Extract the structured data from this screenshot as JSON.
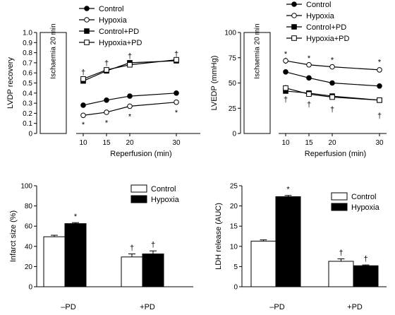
{
  "chart_data": [
    {
      "type": "line",
      "ylabel": "LVDP recovery",
      "xlabel": "Reperfusion (min)",
      "ylim": [
        0,
        1.0
      ],
      "yticks": [
        "0",
        "0.1",
        "0.2",
        "0.3",
        "0.4",
        "0.5",
        "0.6",
        "0.7",
        "0.8",
        "0.9",
        "1.0"
      ],
      "x": [
        10,
        15,
        20,
        30
      ],
      "xticks": [
        "10",
        "15",
        "20",
        "30"
      ],
      "ischaemia_label": "Ischaemia 20 min",
      "legend_position": "top-left",
      "series": [
        {
          "name": "Control",
          "marker": "filled-circle",
          "values": [
            0.28,
            0.33,
            0.37,
            0.4
          ],
          "errors": [
            0.015,
            0.01,
            0.01,
            0.01
          ]
        },
        {
          "name": "Hypoxia",
          "marker": "open-circle",
          "values": [
            0.18,
            0.21,
            0.27,
            0.31
          ],
          "errors": [
            0.02,
            0.02,
            0.02,
            0.02
          ]
        },
        {
          "name": "Control+PD",
          "marker": "filled-square",
          "values": [
            0.52,
            0.62,
            0.7,
            0.72
          ],
          "errors": [
            0.02,
            0.02,
            0.02,
            0.02
          ]
        },
        {
          "name": "Hypoxia+PD",
          "marker": "open-square",
          "values": [
            0.54,
            0.63,
            0.68,
            0.73
          ],
          "errors": [
            0.02,
            0.02,
            0.02,
            0.02
          ]
        }
      ],
      "annotations": [
        {
          "text": "†",
          "x": 10,
          "y": 0.61
        },
        {
          "text": "†",
          "x": 15,
          "y": 0.7
        },
        {
          "text": "†",
          "x": 20,
          "y": 0.77
        },
        {
          "text": "†",
          "x": 30,
          "y": 0.79
        },
        {
          "text": "*",
          "x": 10,
          "y": 0.09
        },
        {
          "text": "*",
          "x": 15,
          "y": 0.11
        },
        {
          "text": "*",
          "x": 20,
          "y": 0.17
        },
        {
          "text": "*",
          "x": 30,
          "y": 0.21
        }
      ]
    },
    {
      "type": "line",
      "ylabel": "LVEDP (mmHg)",
      "xlabel": "Reperfusion (min)",
      "ylim": [
        0,
        100
      ],
      "yticks": [
        "0",
        "25",
        "50",
        "75",
        "100"
      ],
      "x": [
        10,
        15,
        20,
        30
      ],
      "xticks": [
        "10",
        "15",
        "20",
        "30"
      ],
      "ischaemia_label": "Ischaemia 20 min",
      "legend_position": "top",
      "series": [
        {
          "name": "Control",
          "marker": "filled-circle",
          "values": [
            61,
            55,
            50,
            47
          ],
          "errors": [
            2,
            1.5,
            1.5,
            1.5
          ]
        },
        {
          "name": "Hypoxia",
          "marker": "open-circle",
          "values": [
            72,
            68,
            66,
            63
          ],
          "errors": [
            3,
            2.5,
            2.5,
            2.5
          ]
        },
        {
          "name": "Control+PD",
          "marker": "filled-square",
          "values": [
            42,
            40,
            37,
            33
          ],
          "errors": [
            2,
            2,
            2,
            2
          ]
        },
        {
          "name": "Hypoxia+PD",
          "marker": "open-square",
          "values": [
            45,
            39,
            36,
            33
          ],
          "errors": [
            3,
            2,
            2,
            2
          ]
        }
      ],
      "annotations": [
        {
          "text": "*",
          "x": 10,
          "y": 79
        },
        {
          "text": "*",
          "x": 15,
          "y": 75
        },
        {
          "text": "*",
          "x": 20,
          "y": 73
        },
        {
          "text": "*",
          "x": 30,
          "y": 71
        },
        {
          "text": "†",
          "x": 10,
          "y": 34
        },
        {
          "text": "†",
          "x": 15,
          "y": 29
        },
        {
          "text": "†",
          "x": 20,
          "y": 24
        },
        {
          "text": "†",
          "x": 30,
          "y": 18
        }
      ]
    },
    {
      "type": "bar",
      "ylabel": "Infarct size (%)",
      "ylim": [
        0,
        100
      ],
      "yticks": [
        "0",
        "20",
        "40",
        "60",
        "80",
        "100"
      ],
      "categories": [
        "–PD",
        "+PD"
      ],
      "legend_position": "top-right",
      "series": [
        {
          "name": "Control",
          "color": "#ffffff",
          "values": [
            49.5,
            29.5
          ],
          "errors": [
            1.5,
            3
          ]
        },
        {
          "name": "Hypoxia",
          "color": "#000000",
          "values": [
            62.5,
            32.5
          ],
          "errors": [
            1,
            3
          ]
        }
      ],
      "annotations": [
        {
          "text": "*",
          "series": 1,
          "category": 0
        },
        {
          "text": "†",
          "series": 0,
          "category": 1
        },
        {
          "text": "†",
          "series": 1,
          "category": 1
        }
      ]
    },
    {
      "type": "bar",
      "ylabel": "LDH release (AUC)",
      "ylim": [
        0,
        25
      ],
      "yticks": [
        "0",
        "5",
        "10",
        "15",
        "20",
        "25"
      ],
      "categories": [
        "–PD",
        "+PD"
      ],
      "legend_position": "top-right",
      "series": [
        {
          "name": "Control",
          "color": "#ffffff",
          "values": [
            11.3,
            6.3
          ],
          "errors": [
            0.3,
            0.6
          ]
        },
        {
          "name": "Hypoxia",
          "color": "#000000",
          "values": [
            22.3,
            5.2
          ],
          "errors": [
            0.3,
            0.2
          ]
        }
      ],
      "annotations": [
        {
          "text": "*",
          "series": 1,
          "category": 0
        },
        {
          "text": "†",
          "series": 0,
          "category": 1
        },
        {
          "text": "†",
          "series": 1,
          "category": 1
        }
      ]
    }
  ]
}
